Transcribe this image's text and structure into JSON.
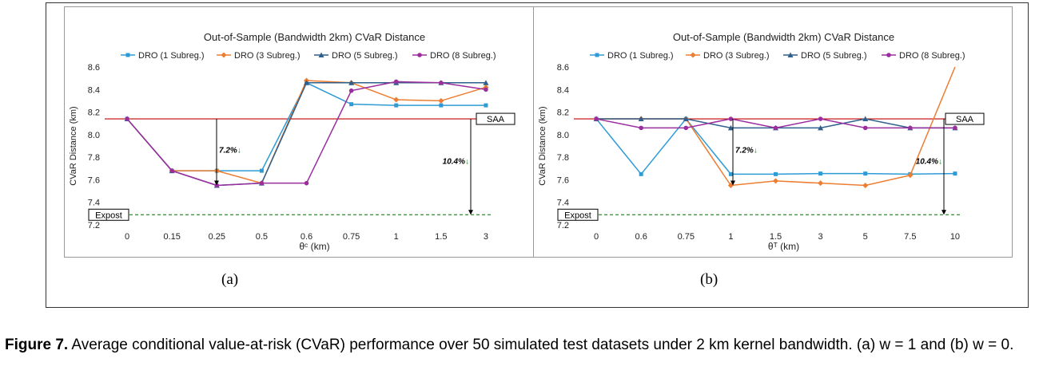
{
  "caption": {
    "figure_label": "Figure 7.",
    "text": "Average conditional value-at-risk (CVaR) performance over 50 simulated test datasets under 2 km kernel bandwidth. (a) w = 1 and (b) w = 0."
  },
  "chart_data": [
    {
      "type": "line",
      "panel_label": "(a)",
      "title": "Out-of-Sample (Bandwidth 2km) CVaR Distance",
      "xlabel": "θᶜ (km)",
      "ylabel": "CVaR Distance (km)",
      "ylim": [
        7.2,
        8.6
      ],
      "yticks": [
        "7.2",
        "7.4",
        "7.6",
        "7.8",
        "8.0",
        "8.2",
        "8.4",
        "8.6"
      ],
      "categories": [
        "0",
        "0.15",
        "0.25",
        "0.5",
        "0.6",
        "0.75",
        "1",
        "1.5",
        "3"
      ],
      "grid": false,
      "legend_position": "top",
      "series": [
        {
          "name": "DRO (1 Subreg.)",
          "color": "#2E9BD6",
          "marker": "square",
          "values": [
            8.14,
            7.68,
            7.68,
            7.68,
            8.46,
            8.27,
            8.26,
            8.26,
            8.26
          ]
        },
        {
          "name": "DRO (3 Subreg.)",
          "color": "#ED7D31",
          "marker": "diamond",
          "values": [
            8.14,
            7.68,
            7.68,
            7.57,
            8.48,
            8.46,
            8.31,
            8.3,
            8.42
          ]
        },
        {
          "name": "DRO (5 Subreg.)",
          "color": "#2F5F8A",
          "marker": "triangle",
          "values": [
            8.14,
            7.68,
            7.55,
            7.57,
            8.46,
            8.46,
            8.46,
            8.46,
            8.46
          ]
        },
        {
          "name": "DRO (8 Subreg.)",
          "color": "#9B2D9E",
          "marker": "circle",
          "values": [
            8.14,
            7.68,
            7.55,
            7.57,
            7.57,
            8.39,
            8.47,
            8.46,
            8.4
          ]
        }
      ],
      "reference_lines": [
        {
          "label": "SAA",
          "value": 8.14,
          "color": "#C00000"
        },
        {
          "label": "Expost",
          "value": 7.29,
          "color": "#2E8B2E"
        }
      ],
      "annotations": [
        {
          "text": "7.2%",
          "arrow": "↓"
        },
        {
          "text": "10.4%",
          "arrow": "↓"
        }
      ]
    },
    {
      "type": "line",
      "panel_label": "(b)",
      "title": "Out-of-Sample (Bandwidth 2km) CVaR Distance",
      "xlabel": "θᵀ (km)",
      "ylabel": "CVaR Distance (km)",
      "ylim": [
        7.2,
        8.6
      ],
      "yticks": [
        "7.2",
        "7.4",
        "7.6",
        "7.8",
        "8.0",
        "8.2",
        "8.4",
        "8.6"
      ],
      "categories": [
        "0",
        "0.6",
        "0.75",
        "1",
        "1.5",
        "3",
        "5",
        "7.5",
        "10"
      ],
      "grid": false,
      "legend_position": "top",
      "series": [
        {
          "name": "DRO (1 Subreg.)",
          "color": "#2E9BD6",
          "marker": "square",
          "values": [
            8.14,
            7.65,
            8.14,
            7.65,
            7.65,
            7.655,
            7.655,
            7.65,
            7.655
          ]
        },
        {
          "name": "DRO (3 Subreg.)",
          "color": "#ED7D31",
          "marker": "diamond",
          "values": [
            8.14,
            8.14,
            8.14,
            7.55,
            7.59,
            7.57,
            7.55,
            7.64,
            8.6
          ]
        },
        {
          "name": "DRO (5 Subreg.)",
          "color": "#2F5F8A",
          "marker": "triangle",
          "values": [
            8.14,
            8.14,
            8.14,
            8.06,
            8.06,
            8.06,
            8.14,
            8.06,
            8.06
          ]
        },
        {
          "name": "DRO (8 Subreg.)",
          "color": "#9B2D9E",
          "marker": "circle",
          "values": [
            8.14,
            8.06,
            8.06,
            8.14,
            8.06,
            8.14,
            8.06,
            8.06,
            8.06
          ]
        }
      ],
      "reference_lines": [
        {
          "label": "SAA",
          "value": 8.14,
          "color": "#C00000"
        },
        {
          "label": "Expost",
          "value": 7.29,
          "color": "#2E8B2E"
        }
      ],
      "annotations": [
        {
          "text": "7.2%",
          "arrow": "↓"
        },
        {
          "text": "10.4%",
          "arrow": "↓"
        }
      ]
    }
  ]
}
